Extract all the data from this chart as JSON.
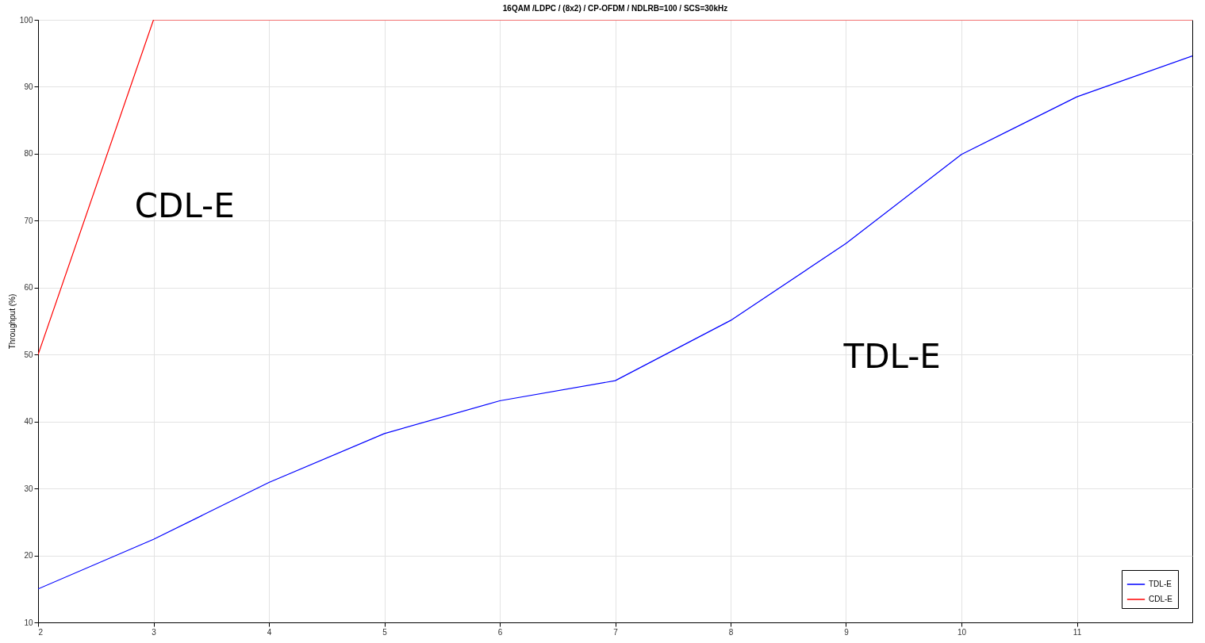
{
  "chart_data": {
    "type": "line",
    "title": "16QAM /LDPC / (8x2) / CP-OFDM / NDLRB=100 / SCS=30kHz",
    "ylabel": "Throughput (%)",
    "x": [
      2,
      3,
      4,
      5,
      6,
      7,
      8,
      9,
      10,
      11,
      12
    ],
    "series": [
      {
        "name": "TDL-E",
        "color": "#0000ff",
        "values": [
          15,
          22.4,
          30.9,
          38.2,
          43.1,
          46.1,
          55.1,
          66.6,
          79.9,
          88.5,
          94.6
        ]
      },
      {
        "name": "CDL-E",
        "color": "#ff0000",
        "values": [
          50,
          100,
          100,
          100,
          100,
          100,
          100,
          100,
          100,
          100,
          100
        ]
      }
    ],
    "xlim": [
      2,
      12
    ],
    "xticks": [
      2,
      3,
      4,
      5,
      6,
      7,
      8,
      9,
      10,
      11
    ],
    "ylim": [
      10,
      100
    ],
    "yticks": [
      10,
      20,
      30,
      40,
      50,
      60,
      70,
      80,
      90,
      100
    ],
    "grid": true,
    "legend": "bottom right",
    "line_style": "solid",
    "annotations": [
      "CDL-E",
      "TDL-E"
    ]
  }
}
